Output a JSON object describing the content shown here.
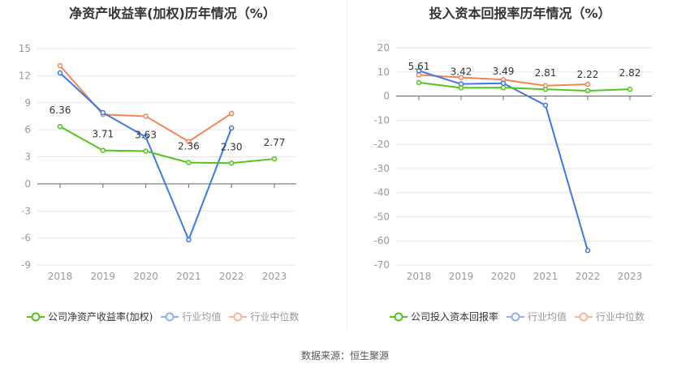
{
  "chart_data": [
    {
      "type": "line",
      "title": "净资产收益率(加权)历年情况（%）",
      "categories": [
        "2018",
        "2019",
        "2020",
        "2021",
        "2022",
        "2023"
      ],
      "ylim": [
        -9,
        15
      ],
      "yticks": [
        15,
        12,
        9,
        6,
        3,
        0,
        -3,
        -6,
        -9
      ],
      "grid": true,
      "legend_position": "bottom",
      "series": [
        {
          "name": "公司净资产收益率(加权)",
          "color": "#52c41a",
          "values": [
            6.36,
            3.71,
            3.63,
            2.36,
            2.3,
            2.77
          ],
          "labels": [
            "6.36",
            "3.71",
            "3.63",
            "2.36",
            "2.30",
            "2.77"
          ]
        },
        {
          "name": "行业均值",
          "color": "#3c78e8",
          "values": [
            12.3,
            7.9,
            5.2,
            -6.2,
            6.2,
            null
          ]
        },
        {
          "name": "行业中位数",
          "color": "#f5844f",
          "values": [
            13.1,
            7.7,
            7.5,
            4.7,
            7.8,
            null
          ]
        }
      ]
    },
    {
      "type": "line",
      "title": "投入资本回报率历年情况（%）",
      "categories": [
        "2018",
        "2019",
        "2020",
        "2021",
        "2022",
        "2023"
      ],
      "ylim": [
        -70,
        20
      ],
      "yticks": [
        20,
        10,
        0,
        -10,
        -20,
        -30,
        -40,
        -50,
        -60,
        -70
      ],
      "grid": true,
      "legend_position": "bottom",
      "series": [
        {
          "name": "公司投入资本回报率",
          "color": "#52c41a",
          "values": [
            5.61,
            3.42,
            3.49,
            2.81,
            2.22,
            2.82
          ],
          "labels": [
            "5.61",
            "3.42",
            "3.49",
            "2.81",
            "2.22",
            "2.82"
          ]
        },
        {
          "name": "行业均值",
          "color": "#3c78e8",
          "values": [
            10.5,
            5.0,
            5.3,
            -3.8,
            -64.0,
            null
          ]
        },
        {
          "name": "行业中位数",
          "color": "#f5844f",
          "values": [
            8.8,
            7.7,
            6.8,
            4.3,
            4.9,
            null
          ]
        }
      ]
    }
  ],
  "source": "数据来源：恒生聚源"
}
